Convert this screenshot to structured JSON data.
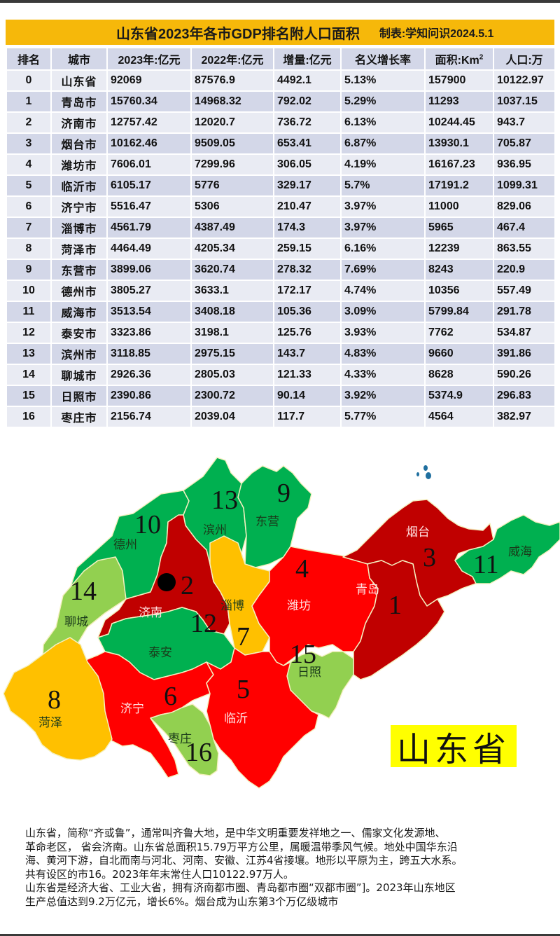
{
  "header": {
    "title": "山东省2023年各市GDP排名附人口面积",
    "credit": "制表:学知问识2024.5.1"
  },
  "table": {
    "columns": [
      "排名",
      "城市",
      "2023年:亿元",
      "2022年:亿元",
      "增量:亿元",
      "名义增长率",
      "面积:Km",
      "人口:万"
    ],
    "area_unit_sup": "2",
    "rows": [
      {
        "rank": "0",
        "city": "山东省",
        "gdp2023": "92069",
        "gdp2022": "87576.9",
        "increase": "4492.1",
        "growth": "5.13%",
        "area": "157900",
        "population": "10122.97"
      },
      {
        "rank": "1",
        "city": "青岛市",
        "gdp2023": "15760.34",
        "gdp2022": "14968.32",
        "increase": "792.02",
        "growth": "5.29%",
        "area": "11293",
        "population": "1037.15"
      },
      {
        "rank": "2",
        "city": "济南市",
        "gdp2023": "12757.42",
        "gdp2022": "12020.7",
        "increase": "736.72",
        "growth": "6.13%",
        "area": "10244.45",
        "population": "943.7"
      },
      {
        "rank": "3",
        "city": "烟台市",
        "gdp2023": "10162.46",
        "gdp2022": "9509.05",
        "increase": "653.41",
        "growth": "6.87%",
        "area": "13930.1",
        "population": "705.87"
      },
      {
        "rank": "4",
        "city": "潍坊市",
        "gdp2023": "7606.01",
        "gdp2022": "7299.96",
        "increase": "306.05",
        "growth": "4.19%",
        "area": "16167.23",
        "population": "936.95"
      },
      {
        "rank": "5",
        "city": "临沂市",
        "gdp2023": "6105.17",
        "gdp2022": "5776",
        "increase": "329.17",
        "growth": "5.7%",
        "area": "17191.2",
        "population": "1099.31"
      },
      {
        "rank": "6",
        "city": "济宁市",
        "gdp2023": "5516.47",
        "gdp2022": "5306",
        "increase": "210.47",
        "growth": "3.97%",
        "area": "11000",
        "population": "829.06"
      },
      {
        "rank": "7",
        "city": "淄博市",
        "gdp2023": "4561.79",
        "gdp2022": "4387.49",
        "increase": "174.3",
        "growth": "3.97%",
        "area": "5965",
        "population": "467.4"
      },
      {
        "rank": "8",
        "city": "菏泽市",
        "gdp2023": "4464.49",
        "gdp2022": "4205.34",
        "increase": "259.15",
        "growth": "6.16%",
        "area": "12239",
        "population": "863.55"
      },
      {
        "rank": "9",
        "city": "东营市",
        "gdp2023": "3899.06",
        "gdp2022": "3620.74",
        "increase": "278.32",
        "growth": "7.69%",
        "area": "8243",
        "population": "220.9"
      },
      {
        "rank": "10",
        "city": "德州市",
        "gdp2023": "3805.27",
        "gdp2022": "3633.1",
        "increase": "172.17",
        "growth": "4.74%",
        "area": "10356",
        "population": "557.49"
      },
      {
        "rank": "11",
        "city": "威海市",
        "gdp2023": "3513.54",
        "gdp2022": "3408.18",
        "increase": "105.36",
        "growth": "3.09%",
        "area": "5799.84",
        "population": "291.78"
      },
      {
        "rank": "12",
        "city": "泰安市",
        "gdp2023": "3323.86",
        "gdp2022": "3198.1",
        "increase": "125.76",
        "growth": "3.93%",
        "area": "7762",
        "population": "534.87"
      },
      {
        "rank": "13",
        "city": "滨州市",
        "gdp2023": "3118.85",
        "gdp2022": "2975.15",
        "increase": "143.7",
        "growth": "4.83%",
        "area": "9660",
        "population": "391.86"
      },
      {
        "rank": "14",
        "city": "聊城市",
        "gdp2023": "2926.36",
        "gdp2022": "2805.03",
        "increase": "121.33",
        "growth": "4.33%",
        "area": "8628",
        "population": "590.26"
      },
      {
        "rank": "15",
        "city": "日照市",
        "gdp2023": "2390.86",
        "gdp2022": "2300.72",
        "increase": "90.14",
        "growth": "3.92%",
        "area": "5374.9",
        "population": "296.83"
      },
      {
        "rank": "16",
        "city": "枣庄市",
        "gdp2023": "2156.74",
        "gdp2022": "2039.04",
        "increase": "117.7",
        "growth": "5.77%",
        "area": "4564",
        "population": "382.97"
      }
    ]
  },
  "map": {
    "province_label": "山东省",
    "colors": {
      "dark_red": "#c00000",
      "red": "#ff0000",
      "orange": "#ffc000",
      "green": "#00b050",
      "light_green": "#92d050",
      "label_box": "#ffff00",
      "header_bar": "#f6b80a",
      "header_row": "#d3d7e8",
      "row_light": "#e9ebf3"
    },
    "regions": [
      {
        "name": "青岛",
        "rank": "1"
      },
      {
        "name": "济南",
        "rank": "2"
      },
      {
        "name": "烟台",
        "rank": "3"
      },
      {
        "name": "潍坊",
        "rank": "4"
      },
      {
        "name": "临沂",
        "rank": "5"
      },
      {
        "name": "济宁",
        "rank": "6"
      },
      {
        "name": "淄博",
        "rank": "7"
      },
      {
        "name": "菏泽",
        "rank": "8"
      },
      {
        "name": "东营",
        "rank": "9"
      },
      {
        "name": "德州",
        "rank": "10"
      },
      {
        "name": "威海",
        "rank": "11"
      },
      {
        "name": "泰安",
        "rank": "12"
      },
      {
        "name": "滨州",
        "rank": "13"
      },
      {
        "name": "聊城",
        "rank": "14"
      },
      {
        "name": "日照",
        "rank": "15"
      },
      {
        "name": "枣庄",
        "rank": "16"
      }
    ]
  },
  "description": {
    "lines": [
      "山东省，简称“齐或鲁”，通常叫齐鲁大地，是中华文明重要发祥地之一、儒家文化发源地、",
      "革命老区， 省会济南。山东省总面积15.79万平方公里，属暖温带季风气候。地处中国华东沿",
      "海、黄河下游，自北而南与河北、河南、安徽、江苏4省接壤。地形以平原为主，跨五大水系。",
      "共有设区的市16。2023年年末常住人口10122.97万人。",
      "山东省是经济大省、工业大省，拥有济南都市圈、青岛都市圈“双都市圈”]。2023年山东地区",
      "生产总值达到9.2万亿元，增长6%。烟台成为山东第3个万亿级城市"
    ]
  },
  "chart_data": {
    "type": "table",
    "title": "山东省2023年各市GDP排名附人口面积",
    "subtitle": "制表:学知问识2024.5.1",
    "columns": [
      "排名",
      "城市",
      "2023年:亿元",
      "2022年:亿元",
      "增量:亿元",
      "名义增长率",
      "面积:Km²",
      "人口:万"
    ],
    "categories": [
      "山东省",
      "青岛市",
      "济南市",
      "烟台市",
      "潍坊市",
      "临沂市",
      "济宁市",
      "淄博市",
      "菏泽市",
      "东营市",
      "德州市",
      "威海市",
      "泰安市",
      "滨州市",
      "聊城市",
      "日照市",
      "枣庄市"
    ],
    "series": [
      {
        "name": "2023年:亿元",
        "values": [
          92069,
          15760.34,
          12757.42,
          10162.46,
          7606.01,
          6105.17,
          5516.47,
          4561.79,
          4464.49,
          3899.06,
          3805.27,
          3513.54,
          3323.86,
          3118.85,
          2926.36,
          2390.86,
          2156.74
        ]
      },
      {
        "name": "2022年:亿元",
        "values": [
          87576.9,
          14968.32,
          12020.7,
          9509.05,
          7299.96,
          5776,
          5306,
          4387.49,
          4205.34,
          3620.74,
          3633.1,
          3408.18,
          3198.1,
          2975.15,
          2805.03,
          2300.72,
          2039.04
        ]
      },
      {
        "name": "增量:亿元",
        "values": [
          4492.1,
          792.02,
          736.72,
          653.41,
          306.05,
          329.17,
          210.47,
          174.3,
          259.15,
          278.32,
          172.17,
          105.36,
          125.76,
          143.7,
          121.33,
          90.14,
          117.7
        ]
      },
      {
        "name": "名义增长率(%)",
        "values": [
          5.13,
          5.29,
          6.13,
          6.87,
          4.19,
          5.7,
          3.97,
          3.97,
          6.16,
          7.69,
          4.74,
          3.09,
          3.93,
          4.83,
          4.33,
          3.92,
          5.77
        ]
      },
      {
        "name": "面积:Km²",
        "values": [
          157900,
          11293,
          10244.45,
          13930.1,
          16167.23,
          17191.2,
          11000,
          5965,
          12239,
          8243,
          10356,
          5799.84,
          7762,
          9660,
          8628,
          5374.9,
          4564
        ]
      },
      {
        "name": "人口:万",
        "values": [
          10122.97,
          1037.15,
          943.7,
          705.87,
          936.95,
          1099.31,
          829.06,
          467.4,
          863.55,
          220.9,
          557.49,
          291.78,
          534.87,
          391.86,
          590.26,
          296.83,
          382.97
        ]
      }
    ]
  }
}
